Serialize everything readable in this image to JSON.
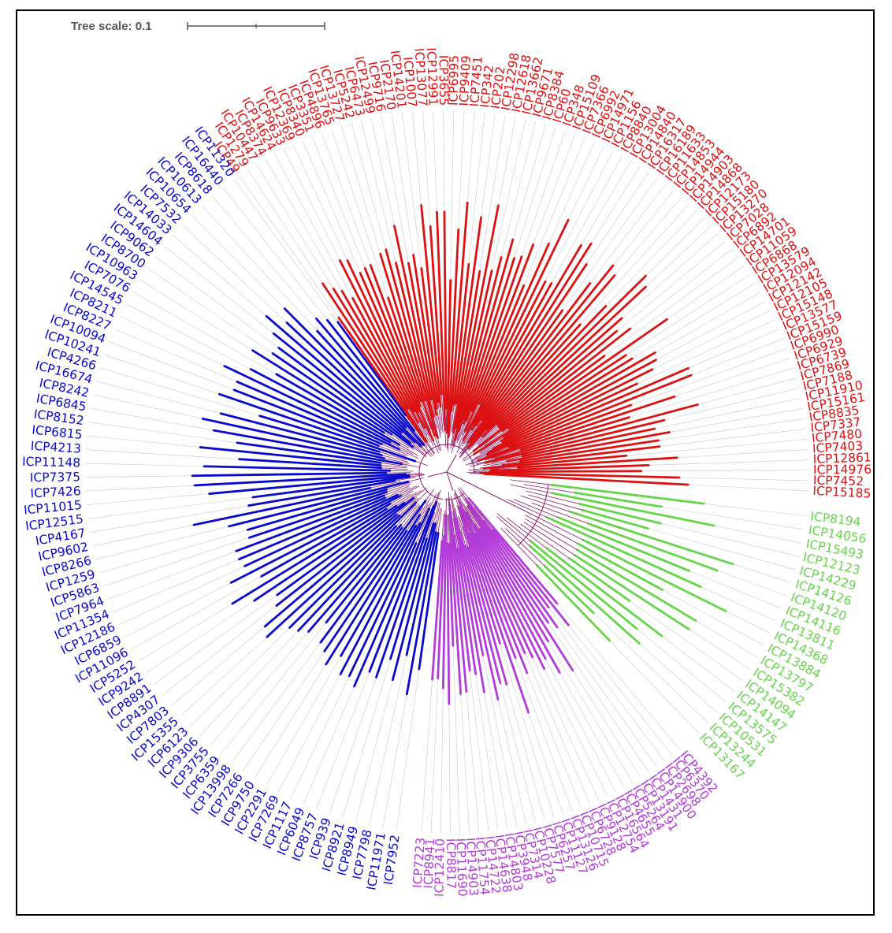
{
  "tree_scale": {
    "label": "Tree scale: 0.1",
    "value": 0.1
  },
  "colors": {
    "red": "#dd1111",
    "blue": "#0a0acc",
    "purple": "#b23bd9",
    "green": "#66d44a",
    "internal": "#8b1a6b",
    "guide": "#c8c8c8"
  },
  "clades": [
    {
      "color": "red",
      "leaves": [
        "ICP49",
        "ICP1279",
        "ICP10447",
        "ICP8374",
        "ICP14624",
        "ICP9633",
        "ICP12369",
        "ICP8340",
        "ICP3351",
        "ICP4896",
        "ICP13765",
        "ICP13727",
        "ICP5242",
        "ICP6473",
        "ICP12499",
        "ICP9716",
        "ICP2170",
        "ICP14201",
        "ICP1007",
        "ICP13077",
        "ICP12991",
        "ICP3655",
        "ICP6995",
        "ICP9409",
        "ICP7451",
        "ICP342",
        "ICP202",
        "ICP12298",
        "ICP12618",
        "ICP13662",
        "ICP9671",
        "ICP8384",
        "ICP60",
        "ICP348",
        "ICP15109",
        "ICP7366",
        "ICP6992",
        "ICP14971",
        "ICP1156",
        "ICP8840",
        "ICP13004",
        "ICP14840",
        "ICP16317",
        "ICP16189",
        "ICP11633",
        "ICP14853",
        "ICP14944",
        "ICP14903",
        "ICP14868",
        "ICP12173",
        "ICP15180",
        "ICP13270",
        "ICP7028",
        "ICP6892",
        "ICP14701",
        "ICP11059",
        "ICP6868",
        "ICP13579",
        "ICP12094",
        "ICP12142",
        "ICP12105",
        "ICP15148",
        "ICP13577",
        "ICP15159",
        "ICP6990",
        "ICP6929",
        "ICP6739",
        "ICP7869",
        "ICP7188",
        "ICP11910",
        "ICP15161",
        "ICP8835",
        "ICP7337",
        "ICP7480",
        "ICP7403",
        "ICP12861",
        "ICP14976",
        "ICP7452",
        "ICP15185"
      ]
    },
    {
      "color": "green",
      "leaves": [
        "ICP8194",
        "ICP14056",
        "ICP15493",
        "ICP12123",
        "ICP14229",
        "ICP14126",
        "ICP14120",
        "ICP14116",
        "ICP13811",
        "ICP14368",
        "ICP13884",
        "ICP13797",
        "ICP15382",
        "ICP14094",
        "ICP14147",
        "ICP13575",
        "ICP10531",
        "ICP13244",
        "ICP13167"
      ]
    },
    {
      "color": "purple",
      "leaves": [
        "ICP4392",
        "ICP6370",
        "ICP2698",
        "ICP14900",
        "ICP1431",
        "ICP13191",
        "ICP5264",
        "ICP4655",
        "ICP16564",
        "ICP12754",
        "ICP9128",
        "ICP6728",
        "ICP10715",
        "ICP13126",
        "ICP11127",
        "ICP6257",
        "ICP7577",
        "ICP10228",
        "ICP7314",
        "ICP3948",
        "ICP14803",
        "ICP14638",
        "ICP14722",
        "ICP11754",
        "ICP14903",
        "ICP11690",
        "ICP8817",
        "ICP12410",
        "ICP8941",
        "ICP7223"
      ]
    },
    {
      "color": "blue",
      "leaves": [
        "ICP7952",
        "ICP11971",
        "ICP7798",
        "ICP8949",
        "ICP8921",
        "ICP939",
        "ICP8757",
        "ICP6049",
        "ICP1117",
        "ICP7269",
        "ICP2291",
        "ICP9750",
        "ICP7266",
        "ICP13998",
        "ICP6359",
        "ICP3755",
        "ICP9306",
        "ICP6123",
        "ICP15355",
        "ICP7803",
        "ICP4307",
        "ICP8891",
        "ICP9242",
        "ICP5252",
        "ICP11096",
        "ICP6859",
        "ICP12186",
        "ICP11354",
        "ICP7964",
        "ICP5863",
        "ICP1259",
        "ICP8266",
        "ICP9602",
        "ICP4167",
        "ICP12515",
        "ICP11015",
        "ICP7426",
        "ICP7375",
        "ICP11148",
        "ICP4213",
        "ICP6815",
        "ICP8152",
        "ICP6845",
        "ICP8242",
        "ICP16674",
        "ICP4266",
        "ICP10241",
        "ICP10094",
        "ICP8227",
        "ICP8211",
        "ICP14545",
        "ICP7076",
        "ICP10963",
        "ICP8700",
        "ICP9062",
        "ICP14604",
        "ICP14033",
        "ICP7532",
        "ICP10654",
        "ICP10613",
        "ICP8618",
        "ICP16440",
        "ICP11320"
      ]
    }
  ]
}
